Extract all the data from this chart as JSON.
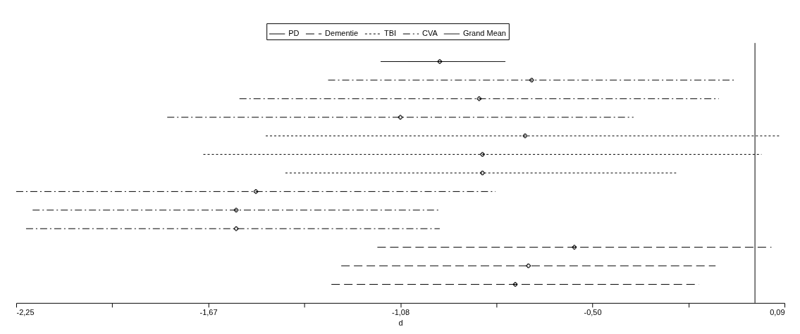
{
  "chart_data": {
    "type": "scatter",
    "orientation": "horizontal",
    "xlabel": "d",
    "categories": [
      null,
      null,
      null,
      null,
      null,
      null,
      null,
      null,
      null,
      null,
      null,
      null,
      null
    ],
    "series": [
      {
        "name": "PD",
        "color": "#000000",
        "line_style": "solid",
        "values": [
          null,
          null,
          null,
          null,
          null,
          null,
          null,
          null,
          null,
          null,
          null,
          null,
          null
        ],
        "errors": [
          null,
          null,
          null,
          null,
          null,
          null,
          null,
          null,
          null,
          null,
          null,
          null,
          null
        ]
      },
      {
        "name": "Dementie",
        "color": "#000000",
        "line_style": "dashed",
        "values": [
          null,
          null,
          null,
          null,
          null,
          null,
          null,
          null,
          null,
          null,
          -0.55,
          -0.69,
          -0.73
        ],
        "errors": [
          null,
          null,
          null,
          null,
          null,
          null,
          null,
          null,
          null,
          null,
          [
            -1.15,
            0.05
          ],
          [
            -1.26,
            -0.12
          ],
          [
            -1.29,
            -0.17
          ]
        ]
      },
      {
        "name": "TBI",
        "color": "#000000",
        "line_style": "dotted",
        "values": [
          null,
          null,
          null,
          null,
          -0.7,
          -0.83,
          -0.83,
          null,
          null,
          null,
          null,
          null,
          null
        ],
        "errors": [
          null,
          null,
          null,
          null,
          [
            -1.49,
            0.08
          ],
          [
            -1.68,
            0.02
          ],
          [
            -1.43,
            -0.24
          ],
          null,
          null,
          null,
          null,
          null,
          null
        ]
      },
      {
        "name": "CVA",
        "color": "#000000",
        "line_style": "dashdot",
        "values": [
          null,
          -0.68,
          -0.84,
          -1.08,
          null,
          null,
          null,
          -1.52,
          -1.58,
          -1.58,
          null,
          null,
          null
        ],
        "errors": [
          null,
          [
            -1.3,
            -0.06
          ],
          [
            -1.57,
            -0.11
          ],
          [
            -1.79,
            -0.37
          ],
          null,
          null,
          null,
          [
            -2.25,
            -0.79
          ],
          [
            -2.2,
            -0.96
          ],
          [
            -2.22,
            -0.96
          ],
          null,
          null,
          null
        ]
      },
      {
        "name": "Grand Mean",
        "color": "#000000",
        "line_style": "solid",
        "values": [
          -0.96,
          null,
          null,
          null,
          null,
          null,
          null,
          null,
          null,
          null,
          null,
          null,
          null
        ],
        "errors": [
          [
            -1.14,
            -0.76
          ],
          null,
          null,
          null,
          null,
          null,
          null,
          null,
          null,
          null,
          null,
          null,
          null
        ]
      }
    ],
    "xlim": [
      -2.25,
      0.09
    ],
    "xticks": [
      {
        "value": -2.25,
        "label": "-2,25"
      },
      {
        "value": -1.9575,
        "label": null
      },
      {
        "value": -1.665,
        "label": "-1,67"
      },
      {
        "value": -1.3725,
        "label": null
      },
      {
        "value": -1.08,
        "label": "-1,08"
      },
      {
        "value": -0.7875,
        "label": null
      },
      {
        "value": -0.495,
        "label": "-0,50"
      },
      {
        "value": -0.2025,
        "label": null
      },
      {
        "value": 0.09,
        "label": "0,09"
      }
    ],
    "ref_lines": [
      {
        "axis": "x",
        "value": 0,
        "color": "#000000"
      }
    ],
    "marker": "cross",
    "legend": "top",
    "grid": false
  }
}
